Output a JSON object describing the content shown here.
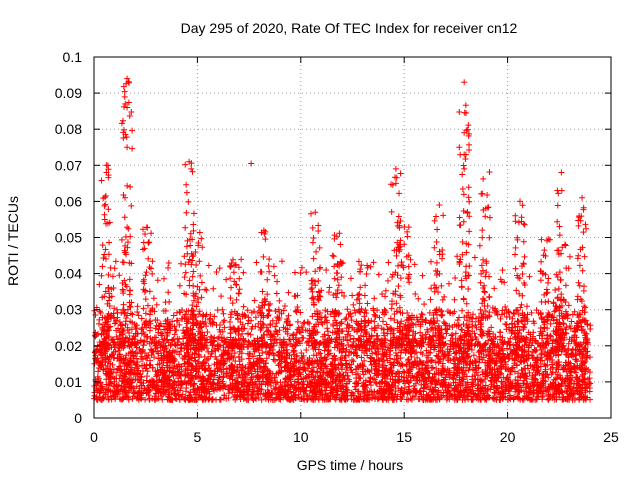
{
  "chart_data": {
    "type": "scatter",
    "title": "Day 295 of 2020, Rate Of TEC Index for receiver cn12",
    "xlabel": "GPS time / hours",
    "ylabel": "ROTI / TECUs",
    "xlim": [
      0,
      25
    ],
    "ylim": [
      0,
      0.1
    ],
    "xticks": [
      0,
      5,
      10,
      15,
      20,
      25
    ],
    "yticks": [
      0,
      0.01,
      0.02,
      0.03,
      0.04,
      0.05,
      0.06,
      0.07,
      0.08,
      0.09,
      0.1
    ],
    "xtick_labels": [
      "0",
      "5",
      "10",
      "15",
      "20",
      "25"
    ],
    "ytick_labels": [
      "0",
      "0.01",
      "0.02",
      "0.03",
      "0.04",
      "0.05",
      "0.06",
      "0.07",
      "0.08",
      "0.09",
      "0.1"
    ],
    "grid": true,
    "marker": "+",
    "color": "#ff0000",
    "x_data_range": [
      0,
      24
    ],
    "baseline_band": [
      0.005,
      0.03
    ],
    "notable_points": [
      {
        "x": 1.6,
        "y": 0.094
      },
      {
        "x": 1.6,
        "y": 0.086
      },
      {
        "x": 1.6,
        "y": 0.075
      },
      {
        "x": 0.6,
        "y": 0.07
      },
      {
        "x": 0.6,
        "y": 0.068
      },
      {
        "x": 4.6,
        "y": 0.071
      },
      {
        "x": 4.7,
        "y": 0.069
      },
      {
        "x": 7.6,
        "y": 0.0705
      },
      {
        "x": 14.6,
        "y": 0.069
      },
      {
        "x": 14.6,
        "y": 0.065
      },
      {
        "x": 17.9,
        "y": 0.093
      },
      {
        "x": 17.9,
        "y": 0.079
      },
      {
        "x": 17.9,
        "y": 0.073
      },
      {
        "x": 17.9,
        "y": 0.069
      },
      {
        "x": 22.6,
        "y": 0.068
      },
      {
        "x": 23.6,
        "y": 0.061
      },
      {
        "x": 1.5,
        "y": 0.061
      },
      {
        "x": 16.7,
        "y": 0.059
      },
      {
        "x": 20.6,
        "y": 0.06
      },
      {
        "x": 10.7,
        "y": 0.057
      }
    ],
    "spikes": [
      {
        "x": 0.6,
        "top": 0.07
      },
      {
        "x": 1.6,
        "top": 0.094
      },
      {
        "x": 2.6,
        "top": 0.053
      },
      {
        "x": 4.6,
        "top": 0.071
      },
      {
        "x": 5.0,
        "top": 0.055
      },
      {
        "x": 6.8,
        "top": 0.043
      },
      {
        "x": 8.3,
        "top": 0.053
      },
      {
        "x": 10.7,
        "top": 0.057
      },
      {
        "x": 11.8,
        "top": 0.052
      },
      {
        "x": 13.0,
        "top": 0.044
      },
      {
        "x": 14.6,
        "top": 0.069
      },
      {
        "x": 15.0,
        "top": 0.055
      },
      {
        "x": 16.7,
        "top": 0.059
      },
      {
        "x": 17.9,
        "top": 0.093
      },
      {
        "x": 18.9,
        "top": 0.069
      },
      {
        "x": 20.6,
        "top": 0.06
      },
      {
        "x": 21.8,
        "top": 0.05
      },
      {
        "x": 22.6,
        "top": 0.068
      },
      {
        "x": 23.6,
        "top": 0.061
      }
    ]
  }
}
